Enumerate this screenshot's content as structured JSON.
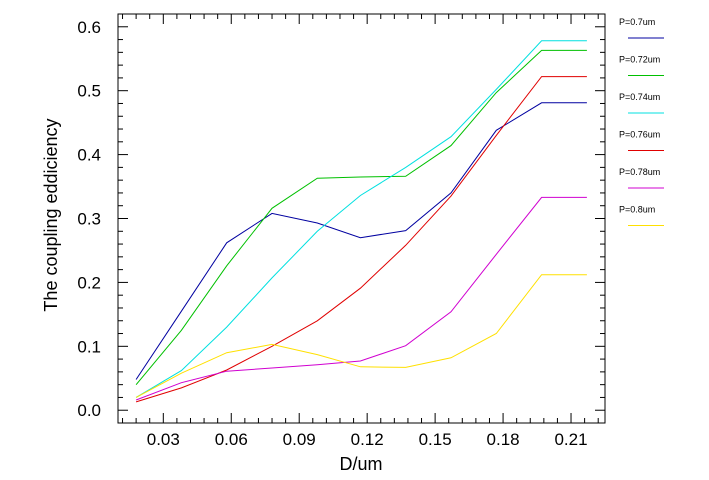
{
  "chart_data": {
    "type": "line",
    "xlabel": "D/um",
    "ylabel": "The coupling eddiciency",
    "xlim": [
      0.01,
      0.225
    ],
    "ylim": [
      -0.02,
      0.62
    ],
    "x_ticks": [
      0.03,
      0.06,
      0.09,
      0.12,
      0.15,
      0.18,
      0.21
    ],
    "x_tick_labels": [
      "0.03",
      "0.06",
      "0.09",
      "0.12",
      "0.15",
      "0.18",
      "0.21"
    ],
    "y_ticks": [
      0.0,
      0.1,
      0.2,
      0.3,
      0.4,
      0.5,
      0.6
    ],
    "y_tick_labels": [
      "0.0",
      "0.1",
      "0.2",
      "0.3",
      "0.4",
      "0.5",
      "0.6"
    ],
    "x": [
      0.018,
      0.038,
      0.058,
      0.078,
      0.098,
      0.117,
      0.137,
      0.157,
      0.177,
      0.197,
      0.217
    ],
    "grid": false,
    "legend_position": "right",
    "series": [
      {
        "name": "P=0.7um",
        "color": "#0000a0",
        "values": [
          0.048,
          0.155,
          0.262,
          0.308,
          0.293,
          0.27,
          0.281,
          0.34,
          0.438,
          0.481,
          0.481
        ]
      },
      {
        "name": "P=0.72um",
        "color": "#00c000",
        "values": [
          0.04,
          0.125,
          0.226,
          0.316,
          0.363,
          0.365,
          0.366,
          0.414,
          0.497,
          0.563,
          0.563
        ]
      },
      {
        "name": "P=0.74um",
        "color": "#00e0e0",
        "values": [
          0.02,
          0.062,
          0.13,
          0.207,
          0.28,
          0.336,
          0.38,
          0.428,
          0.502,
          0.578,
          0.578
        ]
      },
      {
        "name": "P=0.76um",
        "color": "#e00000",
        "values": [
          0.013,
          0.035,
          0.063,
          0.1,
          0.14,
          0.191,
          0.258,
          0.335,
          0.43,
          0.522,
          0.522
        ]
      },
      {
        "name": "P=0.78um",
        "color": "#d000d0",
        "values": [
          0.016,
          0.043,
          0.061,
          0.066,
          0.071,
          0.077,
          0.101,
          0.154,
          0.244,
          0.333,
          0.333
        ]
      },
      {
        "name": "P=0.8um",
        "color": "#ffe000",
        "values": [
          0.02,
          0.058,
          0.09,
          0.103,
          0.087,
          0.068,
          0.067,
          0.082,
          0.12,
          0.212,
          0.212
        ]
      }
    ]
  }
}
